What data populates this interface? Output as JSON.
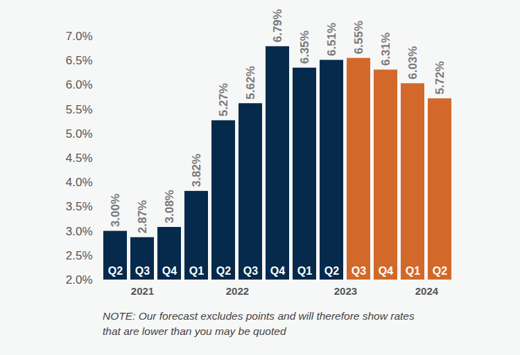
{
  "chart_data": {
    "type": "bar",
    "categories": [
      "Q2",
      "Q3",
      "Q4",
      "Q1",
      "Q2",
      "Q3",
      "Q4",
      "Q1",
      "Q2",
      "Q3",
      "Q4",
      "Q1",
      "Q2"
    ],
    "years": [
      "2021",
      "2021",
      "2021",
      "2022",
      "2022",
      "2022",
      "2022",
      "2023",
      "2023",
      "2023",
      "2023",
      "2024",
      "2024"
    ],
    "values": [
      3.0,
      2.87,
      3.08,
      3.82,
      5.27,
      5.62,
      6.79,
      6.35,
      6.51,
      6.55,
      6.31,
      6.03,
      5.72
    ],
    "value_labels": [
      "3.00%",
      "2.87%",
      "3.08%",
      "3.82%",
      "5.27%",
      "5.62%",
      "6.79%",
      "6.35%",
      "6.51%",
      "6.55%",
      "6.31%",
      "6.03%",
      "5.72%"
    ],
    "colors": [
      "#062a4b",
      "#062a4b",
      "#062a4b",
      "#062a4b",
      "#062a4b",
      "#062a4b",
      "#062a4b",
      "#062a4b",
      "#062a4b",
      "#d2692a",
      "#d2692a",
      "#d2692a",
      "#d2692a"
    ],
    "ylim": [
      2.0,
      7.0
    ],
    "yticks": [
      {
        "value": 2.0,
        "label": "2.0%"
      },
      {
        "value": 2.5,
        "label": "2.5%"
      },
      {
        "value": 3.0,
        "label": "3.0%"
      },
      {
        "value": 3.5,
        "label": "3.5%"
      },
      {
        "value": 4.0,
        "label": "4.0%"
      },
      {
        "value": 4.5,
        "label": "4.5%"
      },
      {
        "value": 5.0,
        "label": "5.0%"
      },
      {
        "value": 5.5,
        "label": "5.5%"
      },
      {
        "value": 6.0,
        "label": "6.0%"
      },
      {
        "value": 6.5,
        "label": "6.5%"
      },
      {
        "value": 7.0,
        "label": "7.0%"
      }
    ],
    "data_labels": true,
    "note": "NOTE: Our forecast excludes points and will therefore show rates that are lower than you may be quoted"
  }
}
